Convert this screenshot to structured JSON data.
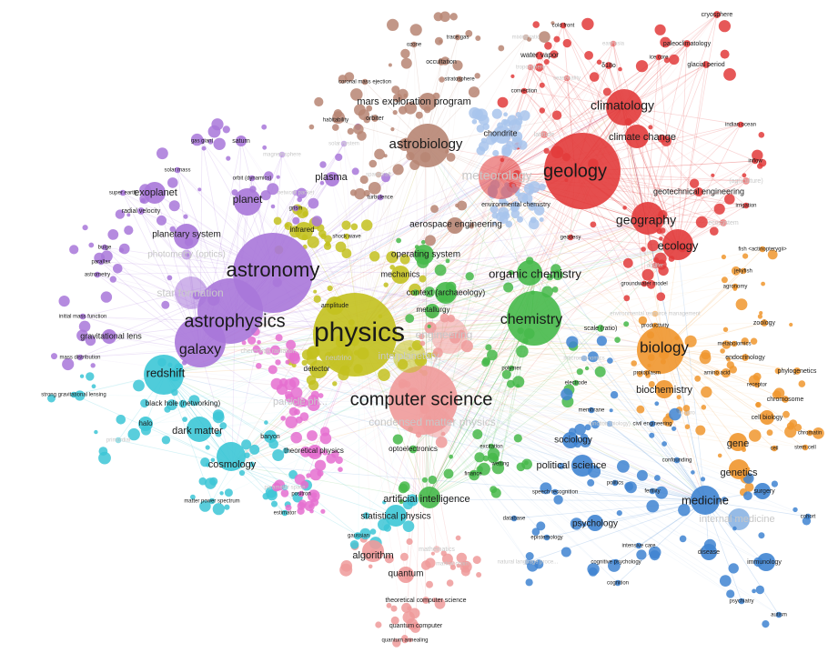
{
  "clusters": {
    "purple": {
      "color": "#a877d9"
    },
    "yellow": {
      "color": "#c3c11e"
    },
    "cyan": {
      "color": "#3cc6d6"
    },
    "red": {
      "color": "#e23b3b"
    },
    "green": {
      "color": "#46b94a"
    },
    "blue": {
      "color": "#3f84d1"
    },
    "orange": {
      "color": "#f0962e"
    },
    "pink": {
      "color": "#ef9a9a"
    },
    "brown": {
      "color": "#b78573"
    },
    "lightblue": {
      "color": "#a8c4ec"
    },
    "magenta": {
      "color": "#e56fd0"
    }
  },
  "terms": [
    {
      "id": "physics",
      "label": "physics",
      "c": "yellow",
      "sz": 30
    },
    {
      "id": "computer-science",
      "label": "computer science",
      "c": "pink",
      "sz": 20
    },
    {
      "id": "astronomy",
      "label": "astronomy",
      "c": "purple",
      "sz": 22
    },
    {
      "id": "astrophysics",
      "label": "astrophysics",
      "c": "purple",
      "sz": 20
    },
    {
      "id": "geology",
      "label": "geology",
      "c": "red",
      "sz": 20
    },
    {
      "id": "biology",
      "label": "biology",
      "c": "orange",
      "sz": 17
    },
    {
      "id": "chemistry",
      "label": "chemistry",
      "c": "green",
      "sz": 16
    },
    {
      "id": "galaxy",
      "label": "galaxy",
      "c": "purple",
      "sz": 16
    },
    {
      "id": "astrobiology",
      "label": "astrobiology",
      "c": "brown",
      "sz": 15
    },
    {
      "id": "climatology",
      "label": "climatology",
      "c": "red",
      "sz": 14
    },
    {
      "id": "geography",
      "label": "geography",
      "c": "red",
      "sz": 14
    },
    {
      "id": "ecology",
      "label": "ecology",
      "c": "red",
      "sz": 13
    },
    {
      "id": "medicine",
      "label": "medicine",
      "c": "blue",
      "sz": 13
    },
    {
      "id": "organic-chemistry",
      "label": "organic chemistry",
      "c": "green",
      "sz": 13
    },
    {
      "id": "meteorology",
      "label": "meteorology",
      "c": "red",
      "sz": 14,
      "faint": true
    },
    {
      "id": "exoplanet",
      "label": "exoplanet",
      "c": "purple",
      "sz": 11
    },
    {
      "id": "planet",
      "label": "planet",
      "c": "purple",
      "sz": 12
    },
    {
      "id": "redshift",
      "label": "redshift",
      "c": "cyan",
      "sz": 13
    },
    {
      "id": "cosmology",
      "label": "cosmology",
      "c": "cyan",
      "sz": 11
    },
    {
      "id": "dark-matter",
      "label": "dark matter",
      "c": "cyan",
      "sz": 11
    },
    {
      "id": "climate-change",
      "label": "climate change",
      "c": "red",
      "sz": 11
    },
    {
      "id": "biochemistry",
      "label": "biochemistry",
      "c": "orange",
      "sz": 11
    },
    {
      "id": "genetics",
      "label": "genetics",
      "c": "orange",
      "sz": 11
    },
    {
      "id": "gene",
      "label": "gene",
      "c": "orange",
      "sz": 11
    },
    {
      "id": "artificial-intelligence",
      "label": "artificial intelligence",
      "c": "green",
      "sz": 11
    },
    {
      "id": "political-science",
      "label": "political science",
      "c": "blue",
      "sz": 11
    },
    {
      "id": "algorithm",
      "label": "algorithm",
      "c": "pink",
      "sz": 11
    },
    {
      "id": "mars-exploration-program",
      "label": "mars exploration program",
      "c": "brown",
      "sz": 11
    },
    {
      "id": "plasma",
      "label": "plasma",
      "c": "purple",
      "sz": 11
    },
    {
      "id": "planetary-system",
      "label": "planetary system",
      "c": "purple",
      "sz": 10
    },
    {
      "id": "operating-system",
      "label": "operating system",
      "c": "green",
      "sz": 10
    },
    {
      "id": "aerospace-engineering",
      "label": "aerospace engineering",
      "c": "brown",
      "sz": 10
    },
    {
      "id": "statistical-physics",
      "label": "statistical physics",
      "c": "cyan",
      "sz": 10
    },
    {
      "id": "psychology",
      "label": "psychology",
      "c": "blue",
      "sz": 10
    },
    {
      "id": "sociology",
      "label": "sociology",
      "c": "blue",
      "sz": 10
    },
    {
      "id": "quantum",
      "label": "quantum",
      "c": "pink",
      "sz": 10
    },
    {
      "id": "star-formation",
      "label": "star formation",
      "c": "purple",
      "sz": 12,
      "faint": true
    },
    {
      "id": "engineering",
      "label": "engineering",
      "c": "pink",
      "sz": 12,
      "faint": true
    },
    {
      "id": "condensed-matter-physics",
      "label": "condensed matter physics",
      "c": "pink",
      "sz": 12,
      "faint": true
    },
    {
      "id": "internal-medicine",
      "label": "internal medicine",
      "c": "blue",
      "sz": 11,
      "faint": true
    },
    {
      "id": "photometry-optics",
      "label": "photometry (optics)",
      "c": "purple",
      "sz": 10,
      "faint": true
    },
    {
      "id": "particle-physics",
      "label": "particle ph...",
      "c": "magenta",
      "sz": 11,
      "faint": true
    },
    {
      "id": "interplanetary",
      "label": "interplanetary",
      "c": "yellow",
      "sz": 11,
      "faint": true
    },
    {
      "id": "context-archaeology",
      "label": "context (archaeology)",
      "c": "green",
      "sz": 9
    },
    {
      "id": "mechanics",
      "label": "mechanics",
      "c": "yellow",
      "sz": 9
    },
    {
      "id": "chondrite",
      "label": "chondrite",
      "c": "lightblue",
      "sz": 9
    },
    {
      "id": "geotechnical-engineering",
      "label": "geotechnical engineering",
      "c": "red",
      "sz": 9
    },
    {
      "id": "infrared",
      "label": "infrared",
      "c": "yellow",
      "sz": 8
    },
    {
      "id": "detector",
      "label": "detector",
      "c": "yellow",
      "sz": 8
    },
    {
      "id": "metallurgy",
      "label": "metallurgy",
      "c": "green",
      "sz": 8
    },
    {
      "id": "halo",
      "label": "halo",
      "c": "cyan",
      "sz": 8
    },
    {
      "id": "black-hole-networking",
      "label": "black hole (networking)",
      "c": "cyan",
      "sz": 8
    },
    {
      "id": "gravitational-lens",
      "label": "gravitational lens",
      "c": "purple",
      "sz": 9
    },
    {
      "id": "theoretical-physics",
      "label": "theoretical physics",
      "c": "magenta",
      "sz": 8
    },
    {
      "id": "optoelectronics",
      "label": "optoelectronics",
      "c": "green",
      "sz": 8
    },
    {
      "id": "baryon",
      "label": "baryon",
      "c": "cyan",
      "sz": 7
    },
    {
      "id": "environmental-chemistry",
      "label": "environmental chemistry",
      "c": "lightblue",
      "sz": 7
    },
    {
      "id": "radial-velocity",
      "label": "radial velocity",
      "c": "purple",
      "sz": 7
    },
    {
      "id": "saturn",
      "label": "saturn",
      "c": "purple",
      "sz": 7
    },
    {
      "id": "gas-giant",
      "label": "gas giant",
      "c": "purple",
      "sz": 6
    },
    {
      "id": "solar-mass",
      "label": "solar mass",
      "c": "purple",
      "sz": 6
    },
    {
      "id": "orbit-dynamics",
      "label": "orbit (dynamics)",
      "c": "purple",
      "sz": 6
    },
    {
      "id": "super-earth",
      "label": "super earth",
      "c": "purple",
      "sz": 6
    },
    {
      "id": "bulge",
      "label": "bulge",
      "c": "purple",
      "sz": 6
    },
    {
      "id": "parallax",
      "label": "parallax",
      "c": "purple",
      "sz": 6
    },
    {
      "id": "astrometry",
      "label": "astrometry",
      "c": "purple",
      "sz": 6
    },
    {
      "id": "initial-mass-function",
      "label": "initial mass function",
      "c": "purple",
      "sz": 6
    },
    {
      "id": "mass-distribution",
      "label": "mass distribution",
      "c": "purple",
      "sz": 6
    },
    {
      "id": "strong-gravitational-lensing",
      "label": "strong gravitational lensing",
      "c": "cyan",
      "sz": 6
    },
    {
      "id": "matter-power-spectrum",
      "label": "matter power spectrum",
      "c": "cyan",
      "sz": 6
    },
    {
      "id": "estimator",
      "label": "estimator",
      "c": "cyan",
      "sz": 6
    },
    {
      "id": "positron",
      "label": "positron",
      "c": "magenta",
      "sz": 6
    },
    {
      "id": "gaussian",
      "label": "gaussian",
      "c": "cyan",
      "sz": 6
    },
    {
      "id": "theoretical-computer-science",
      "label": "theoretical computer science",
      "c": "pink",
      "sz": 7
    },
    {
      "id": "quantum-computer",
      "label": "quantum computer",
      "c": "pink",
      "sz": 7
    },
    {
      "id": "quantum-annealing",
      "label": "quantum annealing",
      "c": "pink",
      "sz": 6
    },
    {
      "id": "finance",
      "label": "finance",
      "c": "green",
      "sz": 6
    },
    {
      "id": "excitation",
      "label": "excitation",
      "c": "green",
      "sz": 6
    },
    {
      "id": "wetting",
      "label": "wetting",
      "c": "green",
      "sz": 6
    },
    {
      "id": "speech-recognition",
      "label": "speech recognition",
      "c": "blue",
      "sz": 6
    },
    {
      "id": "database",
      "label": "database",
      "c": "blue",
      "sz": 6
    },
    {
      "id": "epistemology",
      "label": "epistemology",
      "c": "blue",
      "sz": 6
    },
    {
      "id": "polymer",
      "label": "polymer",
      "c": "green",
      "sz": 6
    },
    {
      "id": "electrode",
      "label": "electrode",
      "c": "green",
      "sz": 6
    },
    {
      "id": "membrane",
      "label": "membrane",
      "c": "blue",
      "sz": 6
    },
    {
      "id": "civil-engineering",
      "label": "civil engineering",
      "c": "blue",
      "sz": 6
    },
    {
      "id": "confounding",
      "label": "confounding",
      "c": "blue",
      "sz": 6
    },
    {
      "id": "fertility",
      "label": "fertility",
      "c": "blue",
      "sz": 6
    },
    {
      "id": "politics",
      "label": "politics",
      "c": "blue",
      "sz": 6
    },
    {
      "id": "intensive-care",
      "label": "intensive care",
      "c": "blue",
      "sz": 6
    },
    {
      "id": "cognitive-psychology",
      "label": "cognitive psychology",
      "c": "blue",
      "sz": 6
    },
    {
      "id": "cognition",
      "label": "cognition",
      "c": "blue",
      "sz": 6
    },
    {
      "id": "disease",
      "label": "disease",
      "c": "blue",
      "sz": 7
    },
    {
      "id": "immunology",
      "label": "immunology",
      "c": "blue",
      "sz": 7
    },
    {
      "id": "psychiatry",
      "label": "psychiatry",
      "c": "blue",
      "sz": 6
    },
    {
      "id": "autism",
      "label": "autism",
      "c": "blue",
      "sz": 6
    },
    {
      "id": "surgery",
      "label": "surgery",
      "c": "blue",
      "sz": 7
    },
    {
      "id": "cohort",
      "label": "cohort",
      "c": "blue",
      "sz": 6
    },
    {
      "id": "cell-biology",
      "label": "cell biology",
      "c": "orange",
      "sz": 7
    },
    {
      "id": "chromosome",
      "label": "chromosome",
      "c": "orange",
      "sz": 7
    },
    {
      "id": "chromatin",
      "label": "chromatin",
      "c": "orange",
      "sz": 6
    },
    {
      "id": "stem-cell",
      "label": "stem cell",
      "c": "orange",
      "sz": 6
    },
    {
      "id": "cell",
      "label": "cell",
      "c": "orange",
      "sz": 6
    },
    {
      "id": "receptor",
      "label": "receptor",
      "c": "orange",
      "sz": 6
    },
    {
      "id": "amino-acid",
      "label": "amino acid",
      "c": "orange",
      "sz": 6
    },
    {
      "id": "protoplasm",
      "label": "protoplasm",
      "c": "orange",
      "sz": 6
    },
    {
      "id": "phylogenetics",
      "label": "phylogenetics",
      "c": "orange",
      "sz": 7
    },
    {
      "id": "endocrinology",
      "label": "endocrinology",
      "c": "orange",
      "sz": 7
    },
    {
      "id": "metabolomics",
      "label": "metabolomics",
      "c": "orange",
      "sz": 6
    },
    {
      "id": "zoology",
      "label": "zoology",
      "c": "orange",
      "sz": 7
    },
    {
      "id": "agronomy",
      "label": "agronomy",
      "c": "orange",
      "sz": 6
    },
    {
      "id": "jellyfish",
      "label": "jellyfish",
      "c": "orange",
      "sz": 6
    },
    {
      "id": "fish-actinopterygii",
      "label": "fish <actinopterygii>",
      "c": "orange",
      "sz": 6
    },
    {
      "id": "groundwater-model",
      "label": "groundwater model",
      "c": "red",
      "sz": 6
    },
    {
      "id": "scale-ratio",
      "label": "scale (ratio)",
      "c": "green",
      "sz": 7
    },
    {
      "id": "productivity",
      "label": "productivity",
      "c": "orange",
      "sz": 6
    },
    {
      "id": "geodesy",
      "label": "geodesy",
      "c": "red",
      "sz": 6
    },
    {
      "id": "indian-ocean",
      "label": "indian ocean",
      "c": "red",
      "sz": 6
    },
    {
      "id": "inflow",
      "label": "inflow",
      "c": "red",
      "sz": 6
    },
    {
      "id": "irrigation",
      "label": "irrigation",
      "c": "red",
      "sz": 6
    },
    {
      "id": "cryosphere",
      "label": "cryosphere",
      "c": "red",
      "sz": 7
    },
    {
      "id": "paleoclimatology",
      "label": "paleoclimatology",
      "c": "red",
      "sz": 7
    },
    {
      "id": "glacial-period",
      "label": "glacial period",
      "c": "red",
      "sz": 7
    },
    {
      "id": "ice-core",
      "label": "ice core",
      "c": "red",
      "sz": 6
    },
    {
      "id": "delta-18o",
      "label": "δ18o",
      "c": "red",
      "sz": 7
    },
    {
      "id": "cold-front",
      "label": "cold front",
      "c": "red",
      "sz": 6
    },
    {
      "id": "trace-gas",
      "label": "trace gas",
      "c": "brown",
      "sz": 6
    },
    {
      "id": "ozone",
      "label": "ozone",
      "c": "brown",
      "sz": 6
    },
    {
      "id": "occultation",
      "label": "occultation",
      "c": "brown",
      "sz": 7
    },
    {
      "id": "water-vapor",
      "label": "water vapor",
      "c": "red",
      "sz": 8
    },
    {
      "id": "stratosphere",
      "label": "stratosphere",
      "c": "brown",
      "sz": 6
    },
    {
      "id": "convection",
      "label": "convection",
      "c": "red",
      "sz": 6
    },
    {
      "id": "coronal-mass-ejection",
      "label": "coronal mass ejection",
      "c": "brown",
      "sz": 6
    },
    {
      "id": "orbiter",
      "label": "orbiter",
      "c": "brown",
      "sz": 7
    },
    {
      "id": "habitability",
      "label": "habitability",
      "c": "brown",
      "sz": 6
    },
    {
      "id": "turbulence",
      "label": "turbulence",
      "c": "purple",
      "sz": 6
    },
    {
      "id": "grism",
      "label": "grism",
      "c": "purple",
      "sz": 6
    },
    {
      "id": "shock-wave",
      "label": "shock wave",
      "c": "yellow",
      "sz": 6
    },
    {
      "id": "amplitude",
      "label": "amplitude",
      "c": "yellow",
      "sz": 7
    },
    {
      "id": "neutrino",
      "label": "neutrino",
      "c": "yellow",
      "sz": 8,
      "faint": true
    },
    {
      "id": "cherenkov-radiation",
      "label": "cherenkov radiation",
      "c": "magenta",
      "sz": 7,
      "faint": true
    },
    {
      "id": "parameter-space",
      "label": "parameter space",
      "c": "cyan",
      "sz": 6,
      "faint": true
    },
    {
      "id": "primordial",
      "label": "primordial",
      "c": "cyan",
      "sz": 6,
      "faint": true
    },
    {
      "id": "natural-language-processing",
      "label": "natural language proce...",
      "c": "blue",
      "sz": 6,
      "faint": true
    },
    {
      "id": "markov-chain",
      "label": "markov chain",
      "c": "pink",
      "sz": 6,
      "faint": true
    },
    {
      "id": "mathematics",
      "label": "mathematics",
      "c": "pink",
      "sz": 7,
      "faint": true
    },
    {
      "id": "mixing-ratio",
      "label": "mixing ratio",
      "c": "brown",
      "sz": 6,
      "faint": true
    },
    {
      "id": "troposphere",
      "label": "troposphere",
      "c": "red",
      "sz": 6,
      "faint": true
    },
    {
      "id": "latitude",
      "label": "latitude",
      "c": "red",
      "sz": 7,
      "faint": true
    },
    {
      "id": "east-asia",
      "label": "east asia",
      "c": "red",
      "sz": 6,
      "faint": true
    },
    {
      "id": "seasonality",
      "label": "seasonality",
      "c": "red",
      "sz": 6,
      "faint": true
    },
    {
      "id": "magnetosphere",
      "label": "magnetosphere",
      "c": "purple",
      "sz": 6,
      "faint": true
    },
    {
      "id": "solar-system",
      "label": "solar system",
      "c": "purple",
      "sz": 6,
      "faint": true
    },
    {
      "id": "network-packet",
      "label": "network packet",
      "c": "purple",
      "sz": 6,
      "faint": true
    },
    {
      "id": "spacecraft",
      "label": "spacecraft",
      "c": "brown",
      "sz": 6,
      "faint": true
    },
    {
      "id": "agriculture",
      "label": "(agriculture)",
      "c": "red",
      "sz": 7,
      "faint": true
    },
    {
      "id": "ecosystem",
      "label": "ecosystem",
      "c": "red",
      "sz": 7,
      "faint": true
    },
    {
      "id": "environmental-resource-management",
      "label": "environmental resource management",
      "c": "orange",
      "sz": 6,
      "faint": true
    },
    {
      "id": "macroeconomics",
      "label": "macroeconomics",
      "c": "blue",
      "sz": 6,
      "faint": true
    },
    {
      "id": "in-vitro",
      "label": "in vitro",
      "c": "orange",
      "sz": 6,
      "faint": true
    },
    {
      "id": "function-biology",
      "label": "function (biology)",
      "c": "blue",
      "sz": 6,
      "faint": true
    },
    {
      "id": "aquifer",
      "label": "aquifer",
      "c": "red",
      "sz": 6,
      "faint": true
    }
  ]
}
